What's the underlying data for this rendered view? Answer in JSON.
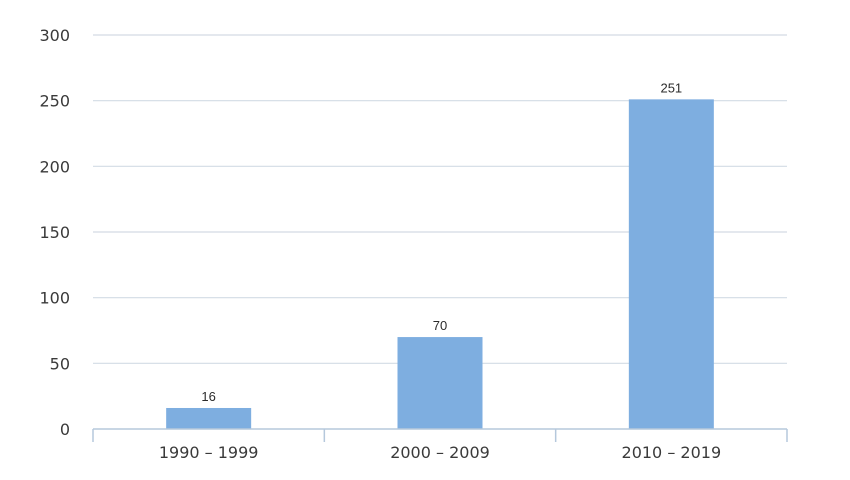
{
  "chart_data": {
    "type": "bar",
    "categories": [
      "1990 – 1999",
      "2000 – 2009",
      "2010 – 2019"
    ],
    "values": [
      16,
      70,
      251
    ],
    "data_labels": [
      "16",
      "70",
      "251"
    ],
    "title": "",
    "xlabel": "",
    "ylabel": "",
    "ylim": [
      0,
      300
    ],
    "yticks": [
      0,
      50,
      100,
      150,
      200,
      250,
      300
    ],
    "grid": true,
    "legend": "none",
    "bar_color": "#7eaee0",
    "grid_color": "#d3dbe4",
    "axis_color": "#b5c8dc"
  }
}
